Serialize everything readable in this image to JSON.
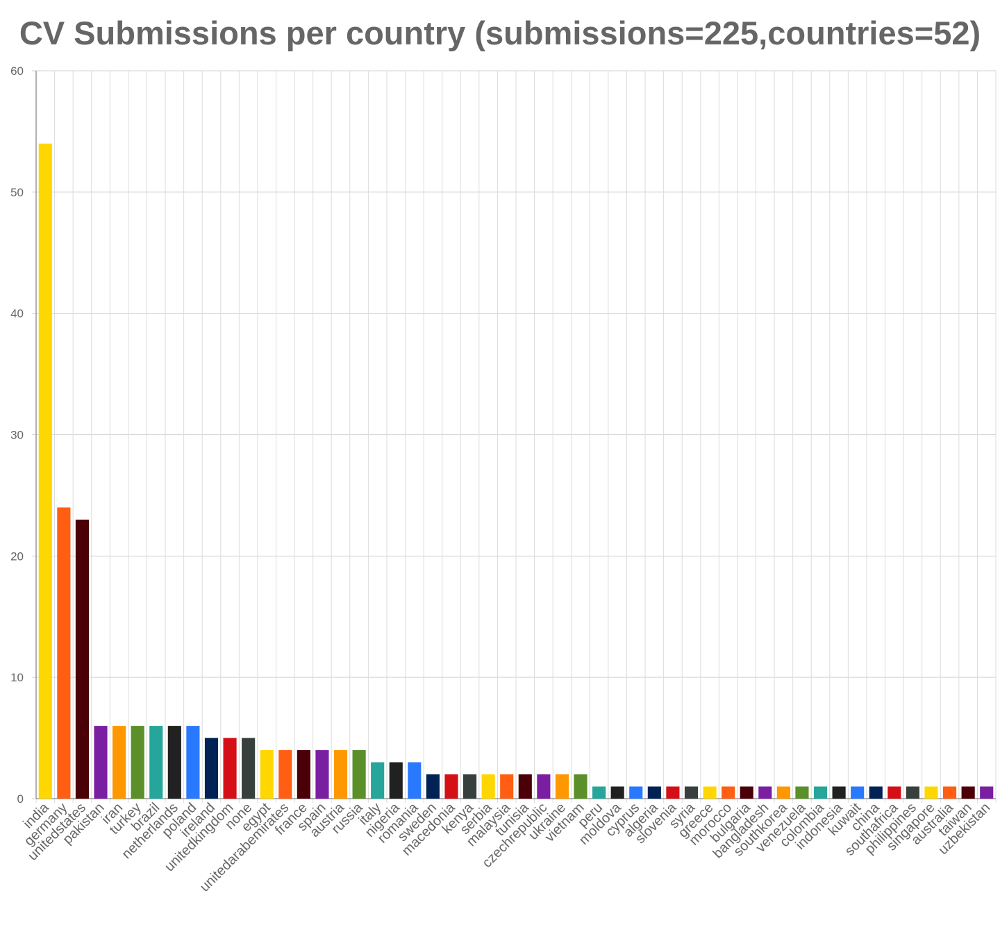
{
  "chart_data": {
    "type": "bar",
    "title": "CV Submissions per country (submissions=225,countries=52)",
    "xlabel": "",
    "ylabel": "",
    "ylim": [
      0,
      60
    ],
    "yticks": [
      0,
      10,
      20,
      30,
      40,
      50,
      60
    ],
    "grid": true,
    "legend": "none",
    "categories": [
      "india",
      "germany",
      "unitedstates",
      "pakistan",
      "iran",
      "turkey",
      "brazil",
      "netherlands",
      "poland",
      "ireland",
      "unitedkingdom",
      "none",
      "egypt",
      "unitedarabemirates",
      "france",
      "spain",
      "austria",
      "russia",
      "italy",
      "nigeria",
      "romania",
      "sweden",
      "macedonia",
      "kenya",
      "serbia",
      "malaysia",
      "tunisia",
      "czechrepublic",
      "ukraine",
      "vietnam",
      "peru",
      "moldova",
      "cyprus",
      "algeria",
      "slovenia",
      "syria",
      "greece",
      "morocco",
      "bulgaria",
      "bangladesh",
      "southkorea",
      "venezuela",
      "colombia",
      "indonesia",
      "kuwait",
      "china",
      "southafrica",
      "philippines",
      "singapore",
      "australia",
      "taiwan",
      "uzbekistan"
    ],
    "values": [
      54,
      24,
      23,
      6,
      6,
      6,
      6,
      6,
      6,
      5,
      5,
      5,
      4,
      4,
      4,
      4,
      4,
      4,
      3,
      3,
      3,
      2,
      2,
      2,
      2,
      2,
      2,
      2,
      2,
      2,
      1,
      1,
      1,
      1,
      1,
      1,
      1,
      1,
      1,
      1,
      1,
      1,
      1,
      1,
      1,
      1,
      1,
      1,
      1,
      1,
      1,
      1
    ],
    "palette": [
      "#FFD700",
      "#FF5E13",
      "#4A0006",
      "#7B1FA2",
      "#FF9800",
      "#5A8F29",
      "#26A69A",
      "#212121",
      "#2979FF",
      "#002255",
      "#D50F16",
      "#37403C"
    ]
  }
}
